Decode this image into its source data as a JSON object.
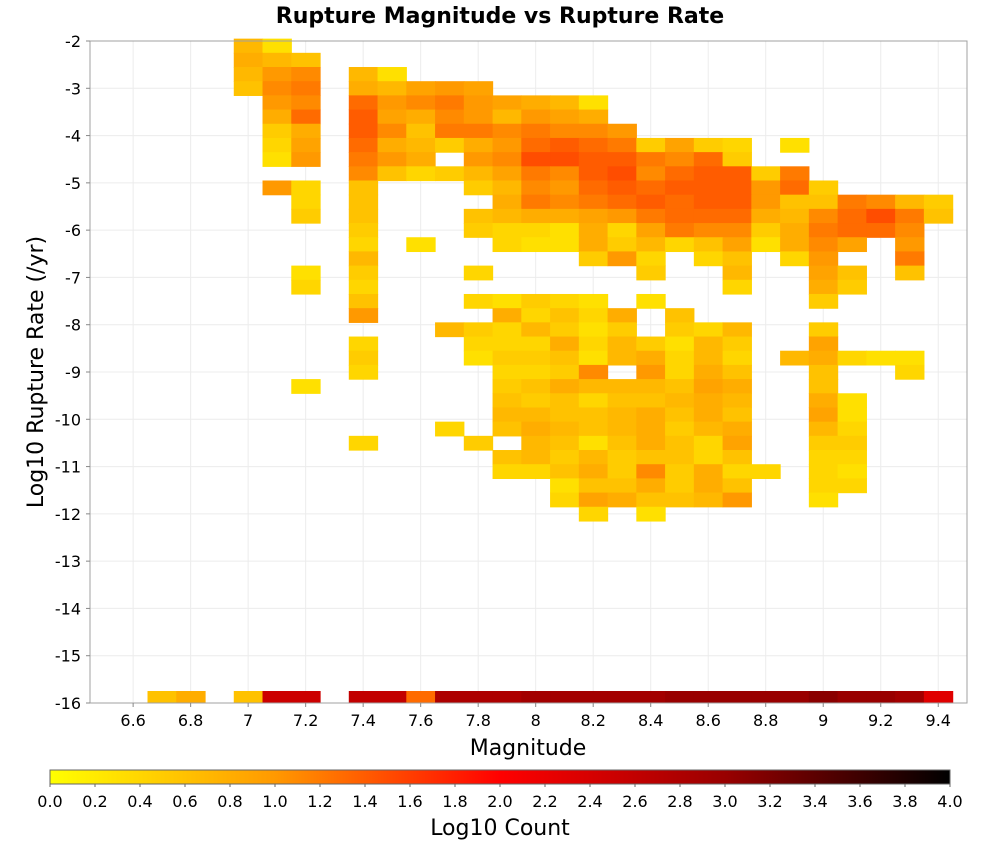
{
  "chart_data": {
    "type": "heatmap",
    "title": "Rupture Magnitude vs Rupture Rate",
    "xlabel": "Magnitude",
    "ylabel": "Log10 Rupture Rate (/yr)",
    "colorbar_label": "Log10 Count",
    "xlim": [
      6.45,
      9.5
    ],
    "ylim": [
      -16,
      -2
    ],
    "x_ticks": [
      "6.6",
      "6.8",
      "7",
      "7.2",
      "7.4",
      "7.6",
      "7.8",
      "8",
      "8.2",
      "8.4",
      "8.6",
      "8.8",
      "9",
      "9.2",
      "9.4"
    ],
    "y_ticks": [
      "-2",
      "-3",
      "-4",
      "-5",
      "-6",
      "-7",
      "-8",
      "-9",
      "-10",
      "-11",
      "-12",
      "-13",
      "-14",
      "-15",
      "-16"
    ],
    "colorbar_ticks": [
      "0.0",
      "0.2",
      "0.4",
      "0.6",
      "0.8",
      "1.0",
      "1.2",
      "1.4",
      "1.6",
      "1.8",
      "2.0",
      "2.2",
      "2.4",
      "2.6",
      "2.8",
      "3.0",
      "3.2",
      "3.4",
      "3.6",
      "3.8",
      "4.0"
    ],
    "color_range": [
      0,
      4
    ],
    "colormap": [
      "#ffff00",
      "#ff9900",
      "#ff0000",
      "#990000",
      "#000000"
    ],
    "x_bins": [
      6.5,
      6.6,
      6.7,
      6.8,
      6.9,
      7.0,
      7.1,
      7.2,
      7.3,
      7.4,
      7.5,
      7.6,
      7.7,
      7.8,
      7.9,
      8.0,
      8.1,
      8.2,
      8.3,
      8.4,
      8.5,
      8.6,
      8.7,
      8.8,
      8.9,
      9.0,
      9.1,
      9.2,
      9.3,
      9.4
    ],
    "y_bins": [
      -2.1,
      -2.4,
      -2.7,
      -3.0,
      -3.3,
      -3.6,
      -3.9,
      -4.2,
      -4.5,
      -4.8,
      -5.1,
      -5.4,
      -5.7,
      -6.0,
      -6.3,
      -6.6,
      -6.9,
      -7.2,
      -7.5,
      -7.8,
      -8.1,
      -8.4,
      -8.7,
      -9.0,
      -9.3,
      -9.6,
      -9.9,
      -10.2,
      -10.5,
      -10.8,
      -11.1,
      -11.4,
      -11.7,
      -12.0
    ],
    "row_count_for_rate_neg16": [
      null,
      null,
      0.6,
      0.8,
      null,
      0.6,
      2.5,
      2.5,
      null,
      2.6,
      2.6,
      1.3,
      2.8,
      2.8,
      2.8,
      2.9,
      2.9,
      2.9,
      2.9,
      2.9,
      3.0,
      3.0,
      3.0,
      3.0,
      3.0,
      3.1,
      3.0,
      3.0,
      2.9,
      2.3
    ],
    "log10_count": [
      [
        null,
        null,
        null,
        null,
        null,
        0.7,
        0.3,
        null,
        null,
        null,
        null,
        null,
        null,
        null,
        null,
        null,
        null,
        null,
        null,
        null,
        null,
        null,
        null,
        null,
        null,
        null,
        null,
        null,
        null,
        null
      ],
      [
        null,
        null,
        null,
        null,
        null,
        0.8,
        0.7,
        0.6,
        null,
        null,
        null,
        null,
        null,
        null,
        null,
        null,
        null,
        null,
        null,
        null,
        null,
        null,
        null,
        null,
        null,
        null,
        null,
        null,
        null,
        null
      ],
      [
        null,
        null,
        null,
        null,
        null,
        0.7,
        1.0,
        1.1,
        null,
        0.7,
        0.3,
        null,
        null,
        null,
        null,
        null,
        null,
        null,
        null,
        null,
        null,
        null,
        null,
        null,
        null,
        null,
        null,
        null,
        null,
        null
      ],
      [
        null,
        null,
        null,
        null,
        null,
        0.6,
        1.1,
        1.2,
        null,
        0.8,
        0.7,
        0.9,
        1.0,
        0.9,
        null,
        null,
        null,
        null,
        null,
        null,
        null,
        null,
        null,
        null,
        null,
        null,
        null,
        null,
        null,
        null
      ],
      [
        null,
        null,
        null,
        null,
        null,
        null,
        1.0,
        1.1,
        null,
        1.3,
        1.0,
        1.1,
        1.2,
        1.0,
        0.9,
        0.8,
        0.7,
        0.3,
        null,
        null,
        null,
        null,
        null,
        null,
        null,
        null,
        null,
        null,
        null,
        null
      ],
      [
        null,
        null,
        null,
        null,
        null,
        null,
        0.8,
        1.3,
        null,
        1.4,
        0.9,
        0.8,
        1.1,
        1.0,
        0.7,
        1.0,
        0.9,
        0.8,
        null,
        null,
        null,
        null,
        null,
        null,
        null,
        null,
        null,
        null,
        null,
        null
      ],
      [
        null,
        null,
        null,
        null,
        null,
        null,
        0.5,
        0.8,
        null,
        1.4,
        1.1,
        0.6,
        1.2,
        1.2,
        1.1,
        1.2,
        1.1,
        1.1,
        1.0,
        null,
        null,
        null,
        null,
        null,
        null,
        null,
        null,
        null,
        null,
        null
      ],
      [
        null,
        null,
        null,
        null,
        null,
        null,
        0.4,
        0.9,
        null,
        1.3,
        0.8,
        0.7,
        0.5,
        0.8,
        1.0,
        1.3,
        1.4,
        1.3,
        1.2,
        0.5,
        0.9,
        0.5,
        0.4,
        null,
        0.3,
        null,
        null,
        null,
        null,
        null
      ],
      [
        null,
        null,
        null,
        null,
        null,
        null,
        0.3,
        1.0,
        null,
        1.2,
        1.0,
        0.8,
        null,
        1.0,
        1.1,
        1.5,
        1.5,
        1.4,
        1.4,
        1.2,
        1.1,
        1.3,
        0.5,
        null,
        null,
        null,
        null,
        null,
        null,
        null
      ],
      [
        null,
        null,
        null,
        null,
        null,
        null,
        null,
        null,
        null,
        1.1,
        0.6,
        0.4,
        0.5,
        0.7,
        0.9,
        1.2,
        1.1,
        1.4,
        1.5,
        1.1,
        1.3,
        1.4,
        1.4,
        0.5,
        1.2,
        null,
        null,
        null,
        null,
        null
      ],
      [
        null,
        null,
        null,
        null,
        null,
        null,
        1.0,
        0.4,
        null,
        0.6,
        null,
        null,
        null,
        0.5,
        0.7,
        1.1,
        1.0,
        1.3,
        1.4,
        1.3,
        1.4,
        1.4,
        1.4,
        1.0,
        1.3,
        0.5,
        null,
        null,
        null,
        null
      ],
      [
        null,
        null,
        null,
        null,
        null,
        null,
        null,
        0.4,
        null,
        0.6,
        null,
        null,
        null,
        null,
        0.8,
        1.2,
        1.1,
        1.2,
        1.3,
        1.4,
        1.3,
        1.4,
        1.4,
        1.0,
        0.6,
        0.6,
        1.2,
        1.1,
        0.7,
        0.5
      ],
      [
        null,
        null,
        null,
        null,
        null,
        null,
        null,
        0.5,
        null,
        0.6,
        null,
        null,
        null,
        0.6,
        0.7,
        0.8,
        0.8,
        0.9,
        1.0,
        1.2,
        1.3,
        1.3,
        1.3,
        0.8,
        0.7,
        1.1,
        1.3,
        1.5,
        1.2,
        0.6
      ],
      [
        null,
        null,
        null,
        null,
        null,
        null,
        null,
        null,
        null,
        0.5,
        null,
        null,
        null,
        0.5,
        0.4,
        0.4,
        0.3,
        0.8,
        0.4,
        0.9,
        1.2,
        1.1,
        1.1,
        0.5,
        0.8,
        1.2,
        1.3,
        1.3,
        1.1,
        null
      ],
      [
        null,
        null,
        null,
        null,
        null,
        null,
        null,
        null,
        null,
        0.4,
        null,
        0.3,
        null,
        null,
        0.4,
        0.3,
        0.3,
        0.8,
        0.5,
        0.7,
        0.4,
        0.6,
        0.9,
        0.3,
        0.8,
        1.1,
        0.9,
        null,
        1.0,
        null
      ],
      [
        null,
        null,
        null,
        null,
        null,
        null,
        null,
        null,
        null,
        0.7,
        null,
        null,
        null,
        null,
        null,
        null,
        null,
        0.5,
        1.0,
        0.4,
        null,
        0.4,
        0.6,
        null,
        0.4,
        1.0,
        null,
        null,
        1.2,
        null
      ],
      [
        null,
        null,
        null,
        null,
        null,
        null,
        null,
        0.3,
        null,
        0.5,
        null,
        null,
        null,
        0.4,
        null,
        null,
        null,
        null,
        null,
        0.5,
        null,
        null,
        0.7,
        null,
        null,
        0.9,
        0.6,
        null,
        0.6,
        null
      ],
      [
        null,
        null,
        null,
        null,
        null,
        null,
        null,
        0.4,
        null,
        0.4,
        null,
        null,
        null,
        null,
        null,
        null,
        null,
        null,
        null,
        null,
        null,
        null,
        0.4,
        null,
        null,
        0.8,
        0.5,
        null,
        null,
        null
      ],
      [
        null,
        null,
        null,
        null,
        null,
        null,
        null,
        null,
        null,
        0.6,
        null,
        null,
        null,
        0.4,
        0.3,
        0.5,
        0.4,
        0.3,
        null,
        0.3,
        null,
        null,
        null,
        null,
        null,
        0.5,
        null,
        null,
        null,
        null
      ],
      [
        null,
        null,
        null,
        null,
        null,
        null,
        null,
        null,
        null,
        1.0,
        null,
        null,
        null,
        null,
        0.8,
        0.4,
        0.6,
        0.4,
        0.8,
        null,
        0.6,
        null,
        null,
        null,
        null,
        null,
        null,
        null,
        null,
        null
      ],
      [
        null,
        null,
        null,
        null,
        null,
        null,
        null,
        null,
        null,
        null,
        null,
        null,
        0.7,
        0.5,
        0.4,
        0.7,
        0.5,
        0.3,
        0.5,
        null,
        0.5,
        0.4,
        0.7,
        null,
        null,
        0.5,
        null,
        null,
        null,
        null
      ],
      [
        null,
        null,
        null,
        null,
        null,
        null,
        null,
        null,
        null,
        0.4,
        null,
        null,
        null,
        0.4,
        0.4,
        0.4,
        0.8,
        0.4,
        0.7,
        0.5,
        0.3,
        0.7,
        0.5,
        null,
        null,
        0.9,
        null,
        null,
        null,
        null
      ],
      [
        null,
        null,
        null,
        null,
        null,
        null,
        null,
        null,
        null,
        0.5,
        null,
        null,
        null,
        0.3,
        0.5,
        0.5,
        0.6,
        0.3,
        0.7,
        0.8,
        0.4,
        0.7,
        0.4,
        null,
        0.7,
        0.8,
        0.4,
        0.3,
        0.3,
        null
      ],
      [
        null,
        null,
        null,
        null,
        null,
        null,
        null,
        null,
        null,
        0.4,
        null,
        null,
        null,
        null,
        0.4,
        0.4,
        0.5,
        1.1,
        null,
        1.0,
        0.4,
        0.8,
        0.6,
        null,
        null,
        0.6,
        null,
        null,
        0.4,
        null
      ],
      [
        null,
        null,
        null,
        null,
        null,
        null,
        null,
        0.3,
        null,
        null,
        null,
        null,
        null,
        null,
        0.5,
        0.6,
        0.8,
        0.7,
        0.7,
        0.7,
        0.6,
        0.9,
        0.8,
        null,
        null,
        0.6,
        null,
        null,
        null,
        null
      ],
      [
        null,
        null,
        null,
        null,
        null,
        null,
        null,
        null,
        null,
        null,
        null,
        null,
        null,
        null,
        0.6,
        0.5,
        0.6,
        0.4,
        0.6,
        0.6,
        0.7,
        0.8,
        0.7,
        null,
        null,
        0.8,
        0.3,
        null,
        null,
        null
      ],
      [
        null,
        null,
        null,
        null,
        null,
        null,
        null,
        null,
        null,
        null,
        null,
        null,
        null,
        null,
        0.7,
        0.7,
        0.6,
        0.6,
        0.7,
        0.8,
        0.6,
        0.8,
        0.6,
        null,
        null,
        0.9,
        0.3,
        null,
        null,
        null
      ],
      [
        null,
        null,
        null,
        null,
        null,
        null,
        null,
        null,
        null,
        null,
        null,
        null,
        0.4,
        null,
        0.6,
        0.8,
        0.7,
        0.6,
        0.7,
        0.8,
        0.5,
        0.7,
        0.8,
        null,
        null,
        0.7,
        0.4,
        null,
        null,
        null
      ],
      [
        null,
        null,
        null,
        null,
        null,
        null,
        null,
        null,
        null,
        0.4,
        null,
        null,
        null,
        0.5,
        null,
        0.7,
        0.6,
        0.3,
        0.6,
        0.8,
        0.6,
        0.4,
        0.9,
        null,
        null,
        0.5,
        0.5,
        null,
        null,
        null
      ],
      [
        null,
        null,
        null,
        null,
        null,
        null,
        null,
        null,
        null,
        null,
        null,
        null,
        null,
        null,
        0.6,
        0.7,
        0.5,
        0.7,
        0.5,
        0.6,
        0.6,
        0.4,
        0.6,
        null,
        null,
        0.4,
        0.4,
        null,
        null,
        null
      ],
      [
        null,
        null,
        null,
        null,
        null,
        null,
        null,
        null,
        null,
        null,
        null,
        null,
        null,
        null,
        0.4,
        0.4,
        0.6,
        0.8,
        0.5,
        1.1,
        0.5,
        0.8,
        0.4,
        0.4,
        null,
        0.4,
        0.3,
        null,
        null,
        null
      ],
      [
        null,
        null,
        null,
        null,
        null,
        null,
        null,
        null,
        null,
        null,
        null,
        null,
        null,
        null,
        null,
        null,
        0.3,
        0.6,
        0.6,
        0.8,
        0.5,
        0.8,
        0.6,
        null,
        null,
        0.4,
        0.4,
        null,
        null,
        null
      ],
      [
        null,
        null,
        null,
        null,
        null,
        null,
        null,
        null,
        null,
        null,
        null,
        null,
        null,
        null,
        null,
        null,
        0.4,
        0.9,
        0.8,
        0.6,
        0.6,
        0.7,
        1.0,
        null,
        null,
        0.3,
        null,
        null,
        null,
        null
      ],
      [
        null,
        null,
        null,
        null,
        null,
        null,
        null,
        null,
        null,
        null,
        null,
        null,
        null,
        null,
        null,
        null,
        null,
        0.4,
        null,
        0.3,
        null,
        null,
        null,
        null,
        null,
        null,
        null,
        null,
        null,
        null
      ]
    ]
  }
}
